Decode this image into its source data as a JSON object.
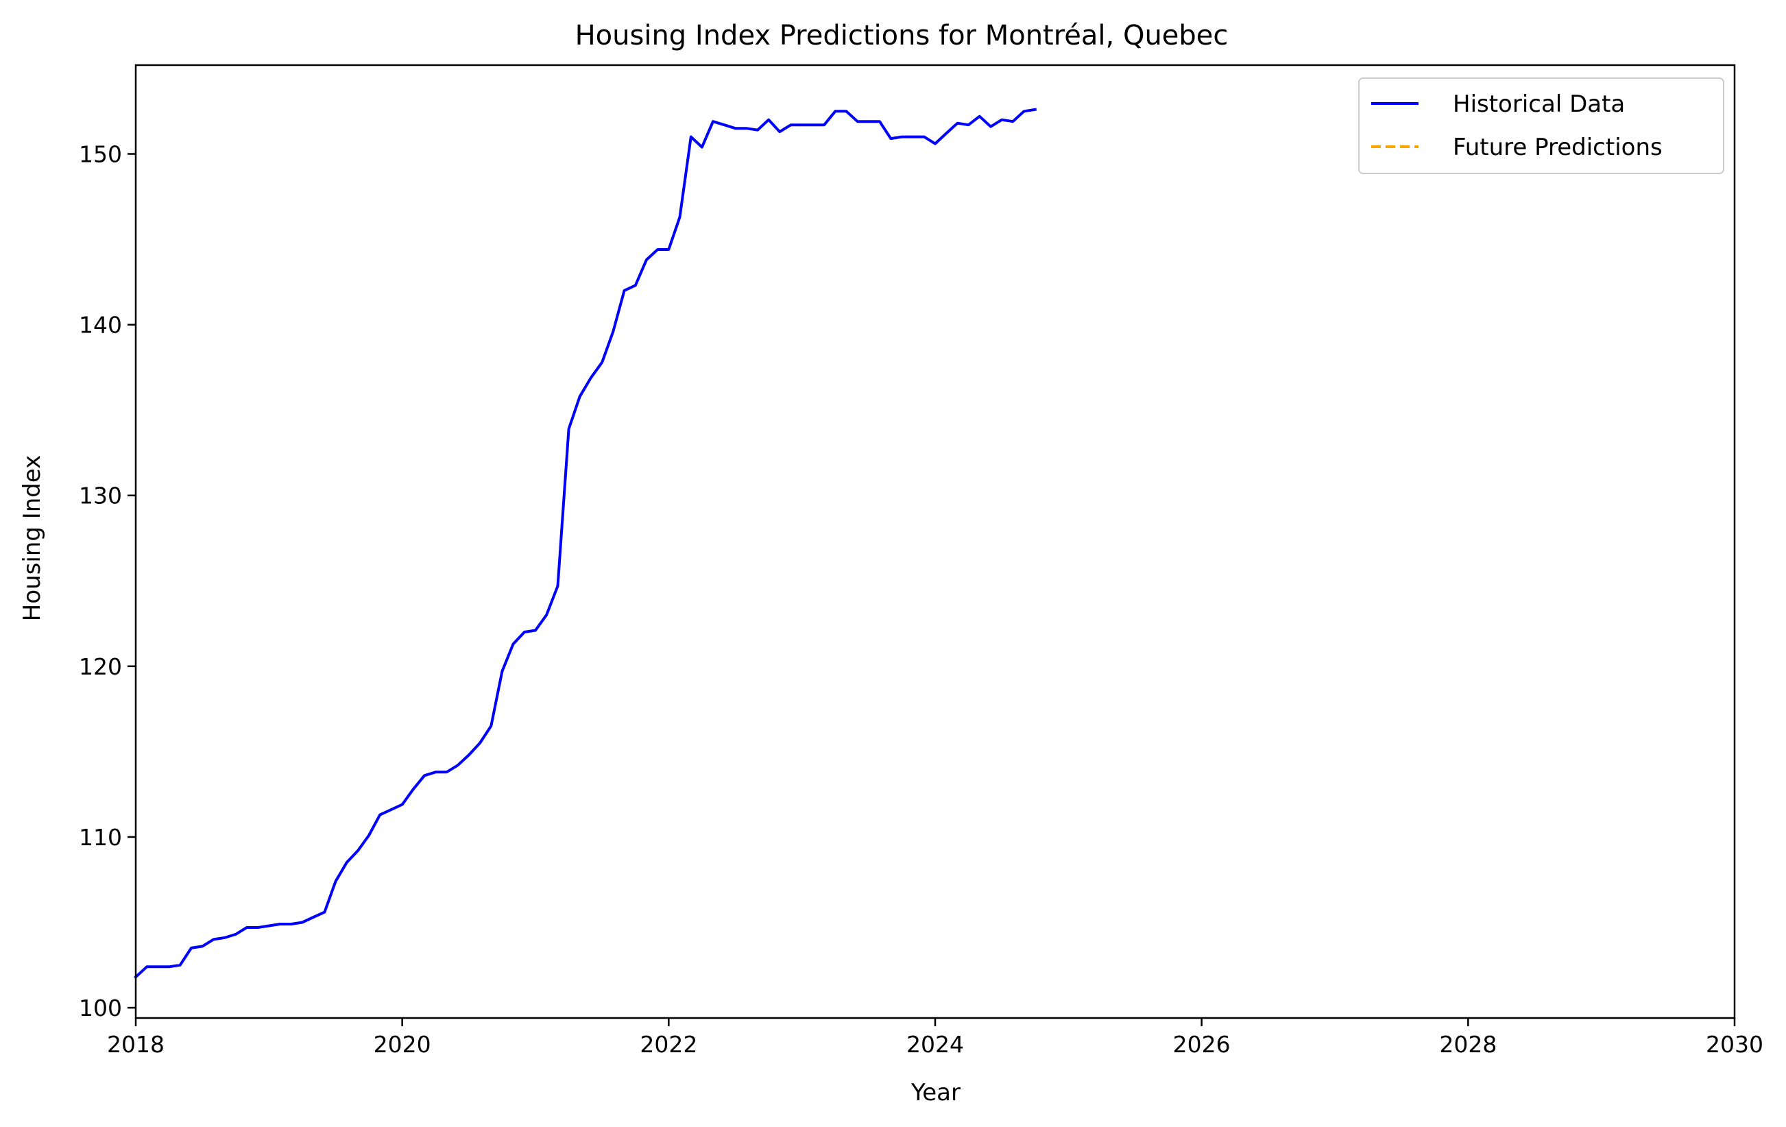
{
  "chart_data": {
    "type": "line",
    "title": "Housing Index Predictions for Montréal, Quebec",
    "xlabel": "Year",
    "ylabel": "Housing Index",
    "xlim": [
      2018,
      2030
    ],
    "ylim": [
      99.4,
      155.2
    ],
    "grid": false,
    "legend_position": "top-right",
    "x_ticks": [
      2018,
      2020,
      2022,
      2024,
      2026,
      2028,
      2030
    ],
    "y_ticks": [
      100,
      110,
      120,
      130,
      140,
      150
    ],
    "series": [
      {
        "name": "Historical Data",
        "color": "#0000ff",
        "style": "solid",
        "x": [
          2018.0,
          2018.083,
          2018.167,
          2018.25,
          2018.333,
          2018.417,
          2018.5,
          2018.583,
          2018.667,
          2018.75,
          2018.833,
          2018.917,
          2019.0,
          2019.083,
          2019.167,
          2019.25,
          2019.333,
          2019.417,
          2019.5,
          2019.583,
          2019.667,
          2019.75,
          2019.833,
          2019.917,
          2020.0,
          2020.083,
          2020.167,
          2020.25,
          2020.333,
          2020.417,
          2020.5,
          2020.583,
          2020.667,
          2020.75,
          2020.833,
          2020.917,
          2021.0,
          2021.083,
          2021.167,
          2021.25,
          2021.333,
          2021.417,
          2021.5,
          2021.583,
          2021.667,
          2021.75,
          2021.833,
          2021.917,
          2022.0,
          2022.083,
          2022.167,
          2022.25,
          2022.333,
          2022.417,
          2022.5,
          2022.583,
          2022.667,
          2022.75,
          2022.833,
          2022.917,
          2023.0,
          2023.083,
          2023.167,
          2023.25,
          2023.333,
          2023.417,
          2023.5,
          2023.583,
          2023.667,
          2023.75,
          2023.833,
          2023.917,
          2024.0,
          2024.083,
          2024.167,
          2024.25,
          2024.333,
          2024.417,
          2024.5,
          2024.583,
          2024.667,
          2024.75
        ],
        "y": [
          101.8,
          102.4,
          102.4,
          102.4,
          102.5,
          103.5,
          103.6,
          104.0,
          104.1,
          104.3,
          104.7,
          104.7,
          104.8,
          104.9,
          104.9,
          105.0,
          105.3,
          105.6,
          107.4,
          108.5,
          109.2,
          110.1,
          111.3,
          111.6,
          111.9,
          112.8,
          113.6,
          113.8,
          113.8,
          114.2,
          114.8,
          115.5,
          116.5,
          119.7,
          121.3,
          122.0,
          122.1,
          123.0,
          124.7,
          133.9,
          135.8,
          136.9,
          137.8,
          139.6,
          142.0,
          142.3,
          143.8,
          144.4,
          144.4,
          146.3,
          151.0,
          150.4,
          151.9,
          151.7,
          151.5,
          151.5,
          151.4,
          152.0,
          151.3,
          151.7,
          151.7,
          151.7,
          151.7,
          152.5,
          152.5,
          151.9,
          151.9,
          151.9,
          150.9,
          151.0,
          151.0,
          151.0,
          150.6,
          151.2,
          151.8,
          151.7,
          152.2,
          151.6,
          152.0,
          151.9,
          152.5,
          152.6
        ]
      },
      {
        "name": "Future Predictions",
        "color": "#ffa500",
        "style": "dashed",
        "x": [],
        "y": []
      }
    ]
  }
}
